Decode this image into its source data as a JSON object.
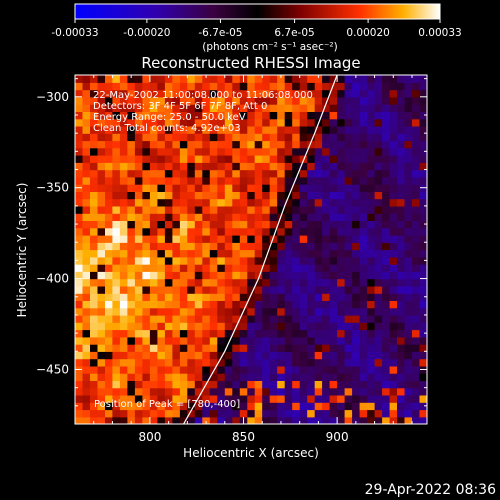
{
  "colorbar": {
    "tick_labels": [
      "-0.00033",
      "-0.00020",
      "-6.7e-05",
      "6.7e-05",
      "0.00020",
      "0.00033"
    ],
    "tick_values": [
      -0.00033,
      -0.0002,
      -6.7e-05,
      6.7e-05,
      0.0002,
      0.00033
    ],
    "range": [
      -0.00033,
      0.00033
    ],
    "units_label": "(photons cm⁻² s⁻¹ asec⁻²)"
  },
  "chart_data": {
    "type": "heatmap",
    "title": "Reconstructed RHESSI Image",
    "xlabel": "Heliocentric X (arcsec)",
    "ylabel": "Heliocentric Y (arcsec)",
    "xlim": [
      760,
      948
    ],
    "ylim": [
      -480,
      -288
    ],
    "x_ticks": [
      800,
      850,
      900
    ],
    "y_ticks": [
      -300,
      -350,
      -400,
      -450
    ],
    "x_tick_labels": [
      "800",
      "850",
      "900"
    ],
    "y_tick_labels": [
      "−300",
      "−350",
      "−400",
      "−450"
    ],
    "annotations": [
      "22-May-2002 11:00:08.000 to 11:06:08.000",
      "Detectors: 3F 4F 5F 6F 7F 8F, Att 0",
      "Energy Range: 25.0 - 50.0 keV",
      "Clean     Total counts: 4.92e+03"
    ],
    "peak_label": "Position of Peak = [780,-400]",
    "peak_position": [
      780,
      -400
    ],
    "limb_curve": [
      [
        818,
        -480
      ],
      [
        840,
        -440
      ],
      [
        858,
        -400
      ],
      [
        872,
        -360
      ],
      [
        888,
        -320
      ],
      [
        900,
        -288
      ]
    ],
    "colors": [
      "#0000ff",
      "#220077",
      "#5a1f8a",
      "#000000",
      "#b00000",
      "#ff5000",
      "#ffb000",
      "#ffffff"
    ]
  },
  "footer": {
    "timestamp": "29-Apr-2022 08:36"
  }
}
